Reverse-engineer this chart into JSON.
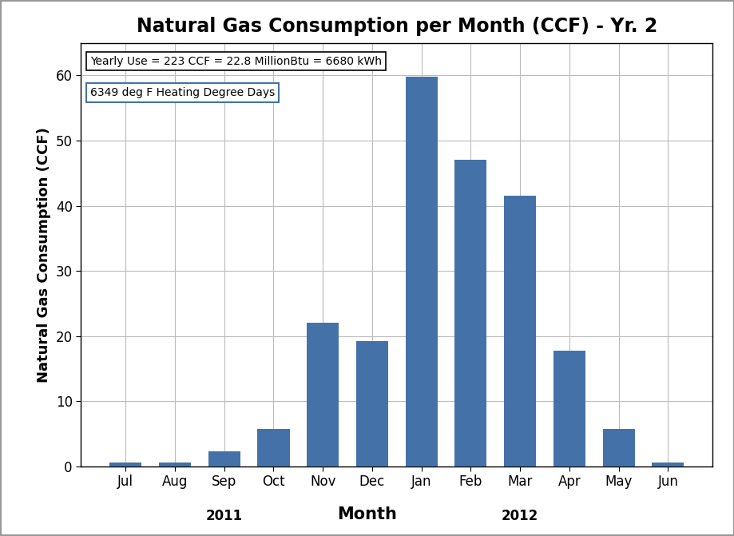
{
  "title": "Natural Gas Consumption per Month (CCF) - Yr. 2",
  "ylabel": "Natural Gas Consumption (CCF)",
  "xlabel": "Month",
  "categories": [
    "Jul",
    "Aug",
    "Sep",
    "Oct",
    "Nov",
    "Dec",
    "Jan",
    "Feb",
    "Mar",
    "Apr",
    "May",
    "Jun"
  ],
  "values": [
    0.6,
    0.6,
    2.3,
    5.7,
    22.0,
    19.2,
    59.8,
    47.0,
    41.5,
    17.7,
    5.7,
    0.6
  ],
  "bar_color": "#4472A8",
  "ylim": [
    0,
    65
  ],
  "yticks": [
    0,
    10,
    20,
    30,
    40,
    50,
    60
  ],
  "annotation_line1": "Yearly Use = 223 CCF = 22.8 MillionBtu = 6680 kWh",
  "annotation_line2": "6349 deg F Heating Degree Days",
  "background_color": "#ffffff",
  "grid_color": "#bbbbbb",
  "title_fontsize": 17,
  "axis_label_fontsize": 13,
  "tick_fontsize": 12,
  "year2011_xpos": 2,
  "year2012_xpos": 8,
  "outer_border_color": "#999999"
}
